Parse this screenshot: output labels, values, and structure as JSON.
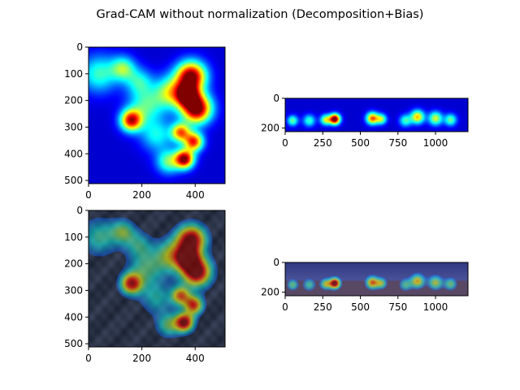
{
  "chart_data": {
    "type": "heatmap",
    "title": "Grad-CAM without normalization (Decomposition+Bias)",
    "colormap": "jet",
    "panels": [
      {
        "id": "satellite-cam",
        "kind": "heatmap",
        "xlim": [
          0,
          512
        ],
        "ylim": [
          512,
          0
        ],
        "xticks": [
          0,
          200,
          400
        ],
        "yticks": [
          0,
          100,
          200,
          300,
          400,
          500
        ],
        "hotspots": [
          {
            "x": 40,
            "y": 100,
            "r": 70,
            "v": 0.35
          },
          {
            "x": 130,
            "y": 80,
            "r": 45,
            "v": 0.4
          },
          {
            "x": 190,
            "y": 130,
            "r": 50,
            "v": 0.3
          },
          {
            "x": 160,
            "y": 275,
            "r": 40,
            "v": 0.8
          },
          {
            "x": 215,
            "y": 220,
            "r": 65,
            "v": 0.35
          },
          {
            "x": 310,
            "y": 170,
            "r": 60,
            "v": 0.5
          },
          {
            "x": 385,
            "y": 110,
            "r": 55,
            "v": 0.95
          },
          {
            "x": 405,
            "y": 230,
            "r": 55,
            "v": 1.0
          },
          {
            "x": 370,
            "y": 180,
            "r": 40,
            "v": 0.75
          },
          {
            "x": 345,
            "y": 320,
            "r": 35,
            "v": 0.65
          },
          {
            "x": 395,
            "y": 355,
            "r": 35,
            "v": 0.75
          },
          {
            "x": 360,
            "y": 420,
            "r": 35,
            "v": 0.9
          },
          {
            "x": 300,
            "y": 430,
            "r": 45,
            "v": 0.4
          },
          {
            "x": 255,
            "y": 330,
            "r": 60,
            "v": 0.3
          }
        ]
      },
      {
        "id": "panorama-cam",
        "kind": "heatmap",
        "xlim": [
          0,
          1216
        ],
        "ylim": [
          224,
          0
        ],
        "xticks": [
          0,
          250,
          500,
          750,
          1000
        ],
        "yticks": [
          0,
          200
        ],
        "hotspots": [
          {
            "x": 50,
            "y": 150,
            "r": 35,
            "v": 0.4
          },
          {
            "x": 160,
            "y": 150,
            "r": 40,
            "v": 0.35
          },
          {
            "x": 330,
            "y": 140,
            "r": 35,
            "v": 1.0
          },
          {
            "x": 270,
            "y": 145,
            "r": 35,
            "v": 0.5
          },
          {
            "x": 580,
            "y": 135,
            "r": 40,
            "v": 0.7
          },
          {
            "x": 640,
            "y": 140,
            "r": 35,
            "v": 0.45
          },
          {
            "x": 800,
            "y": 150,
            "r": 40,
            "v": 0.35
          },
          {
            "x": 880,
            "y": 125,
            "r": 45,
            "v": 0.6
          },
          {
            "x": 1000,
            "y": 135,
            "r": 45,
            "v": 0.5
          },
          {
            "x": 1100,
            "y": 145,
            "r": 40,
            "v": 0.4
          }
        ]
      },
      {
        "id": "satellite-overlay",
        "kind": "overlay",
        "source": "satellite-cam",
        "xlim": [
          0,
          512
        ],
        "ylim": [
          512,
          0
        ],
        "xticks": [
          0,
          200,
          400
        ],
        "yticks": [
          0,
          100,
          200,
          300,
          400,
          500
        ]
      },
      {
        "id": "panorama-overlay",
        "kind": "overlay",
        "source": "panorama-cam",
        "xlim": [
          0,
          1216
        ],
        "ylim": [
          224,
          0
        ],
        "xticks": [
          0,
          250,
          500,
          750,
          1000
        ],
        "yticks": [
          0,
          200
        ]
      }
    ]
  }
}
